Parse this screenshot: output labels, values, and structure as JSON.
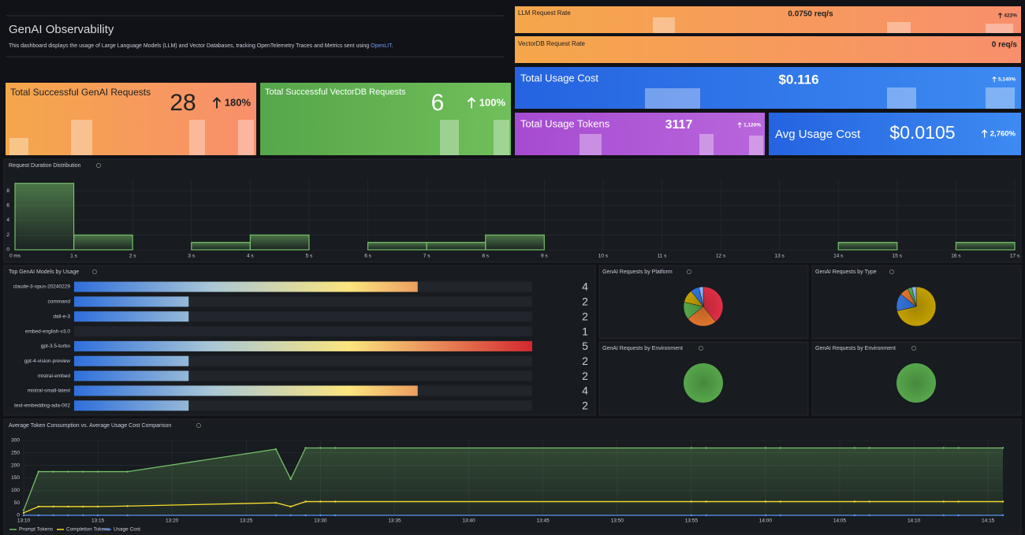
{
  "header": {
    "title": "GenAI Observability",
    "description": "This dashboard displays the usage of Large Language Models (LLM) and Vector Databases, tracking OpenTelemetry Traces and Metrics sent using ",
    "link": "OpenLIT",
    "description_end": "."
  },
  "stats": [
    {
      "title": "LLM Request Rate",
      "value": "0.0750 req/s",
      "change": "422%"
    },
    {
      "title": "VectorDB Request Rate",
      "value": "0 req/s"
    },
    {
      "title": "Total Usage Cost",
      "value": "$0.116",
      "change": "5,140%"
    },
    {
      "title": "Total Usage Tokens",
      "value": "3117",
      "change": "1,120%"
    },
    {
      "title": "Avg Usage Cost",
      "value": "$0.0105",
      "change": "2,760%"
    },
    {
      "title": "Total Successful GenAI Requests",
      "value": "28",
      "change": "180%"
    },
    {
      "title": "Total Successful VectorDB Requests",
      "value": "6",
      "change": "100%"
    }
  ],
  "histogram": {
    "type": "histogram",
    "title": "Request Duration Distribution",
    "bins": [
      0,
      1,
      2,
      3,
      4,
      5,
      6,
      7,
      8,
      9,
      10,
      11,
      12,
      13,
      14,
      15,
      16,
      17
    ],
    "counts": [
      9,
      2,
      0,
      1,
      2,
      0,
      1,
      1,
      2,
      0,
      0,
      0,
      0,
      0,
      1,
      0,
      1
    ],
    "color": "#73bf69",
    "xlim": [
      0,
      17
    ],
    "xticks": [
      {
        "value": 0,
        "label": "0 ms"
      },
      {
        "value": 1,
        "label": "1 s"
      },
      {
        "value": 2,
        "label": "2 s"
      },
      {
        "value": 3,
        "label": "3 s"
      },
      {
        "value": 4,
        "label": "4 s"
      },
      {
        "value": 5,
        "label": "5 s"
      },
      {
        "value": 6,
        "label": "6 s"
      },
      {
        "value": 7,
        "label": "7 s"
      },
      {
        "value": 8,
        "label": "8 s"
      },
      {
        "value": 9,
        "label": "9 s"
      },
      {
        "value": 10,
        "label": "10 s"
      },
      {
        "value": 11,
        "label": "11 s"
      },
      {
        "value": 12,
        "label": "12 s"
      },
      {
        "value": 13,
        "label": "13 s"
      },
      {
        "value": 14,
        "label": "14 s"
      },
      {
        "value": 15,
        "label": "15 s"
      },
      {
        "value": 16,
        "label": "16 s"
      },
      {
        "value": 17,
        "label": "17 s"
      }
    ],
    "ylim": [
      0,
      9.5
    ],
    "yticks": [
      0,
      2,
      4,
      6,
      8
    ]
  },
  "bar_gauge": {
    "type": "bar",
    "title": "Top GenAI Models by Usage",
    "categories": [
      "claude-3-opus-20240229",
      "command",
      "dall-e-3",
      "embed-english-v3.0",
      "gpt-3.5-turbo",
      "gpt-4-vision-preview",
      "mistral-embed",
      "mistral-small-latest",
      "text-embedding-ada-002"
    ],
    "values": [
      4,
      2,
      2,
      1,
      5,
      2,
      2,
      4,
      2
    ],
    "xlim": [
      1,
      5
    ]
  },
  "pies": [
    {
      "type": "pie",
      "title": "GenAI Requests by Platform",
      "values": [
        11,
        7,
        4,
        3,
        2,
        1
      ],
      "colors": [
        "#e02f44",
        "#e0752d",
        "#56a64b",
        "#c4a000",
        "#3274d9",
        "#8ab8ff"
      ]
    },
    {
      "type": "pie",
      "title": "GenAI Requests by Type",
      "values": [
        20,
        4,
        2,
        1,
        1
      ],
      "colors": [
        "#c4a000",
        "#3274d9",
        "#e0752d",
        "#56a64b",
        "#8ab8ff"
      ]
    },
    {
      "type": "pie",
      "title": "GenAI Requests by Environment",
      "values": [
        28
      ],
      "colors": [
        "#56a64b"
      ]
    },
    {
      "type": "pie",
      "title": "GenAI Requests by Environment",
      "values": [
        6
      ],
      "colors": [
        "#56a64b"
      ]
    }
  ],
  "line_chart": {
    "type": "line",
    "title": "Average Token Consumption vs. Average Usage Cost Comparison",
    "x": [
      "13:10",
      "13:11",
      "13:12",
      "13:13",
      "13:14",
      "13:15",
      "13:17",
      "13:27",
      "13:28",
      "13:29",
      "13:30",
      "13:31",
      "13:55",
      "13:56",
      "14:00",
      "14:01",
      "14:06",
      "14:07",
      "14:12",
      "14:13",
      "14:16"
    ],
    "series": [
      {
        "name": "Prompt Tokens",
        "color": "#73bf69",
        "values": [
          20,
          175,
          175,
          175,
          175,
          175,
          175,
          265,
          145,
          270,
          270,
          270,
          270,
          270,
          270,
          270,
          270,
          270,
          270,
          270,
          270
        ]
      },
      {
        "name": "Completion Tokens",
        "color": "#fade2a",
        "values": [
          10,
          35,
          35,
          35,
          35,
          35,
          37,
          50,
          35,
          55,
          55,
          55,
          55,
          55,
          55,
          55,
          55,
          55,
          55,
          55,
          55
        ]
      },
      {
        "name": "Usage Cost",
        "color": "#5794f2",
        "values": [
          0,
          0,
          0,
          0,
          0,
          0,
          0,
          0,
          0,
          0,
          0,
          0,
          0,
          0,
          0,
          0,
          0,
          0,
          0,
          0,
          0
        ]
      }
    ],
    "xlim": [
      "13:10",
      "14:16"
    ],
    "xticks": [
      "13:10",
      "13:15",
      "13:20",
      "13:25",
      "13:30",
      "13:35",
      "13:40",
      "13:45",
      "13:50",
      "13:55",
      "14:00",
      "14:05",
      "14:10",
      "14:15"
    ],
    "ylim": [
      0,
      300
    ],
    "yticks": [
      0,
      50,
      100,
      150,
      200,
      250,
      300
    ]
  }
}
